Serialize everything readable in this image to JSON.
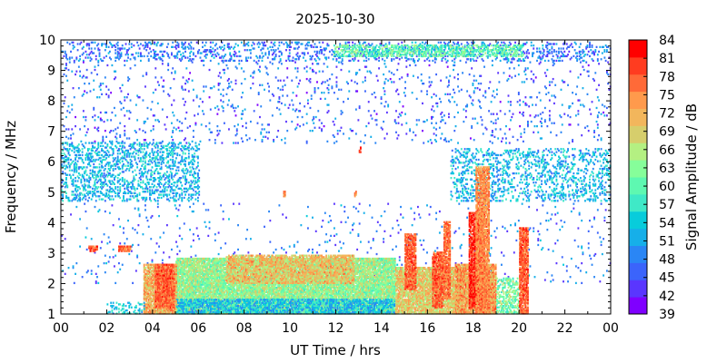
{
  "chart_data": {
    "type": "heatmap",
    "title": "2025-10-30",
    "xlabel": "UT Time / hrs",
    "ylabel": "Frequency / MHz",
    "colorbar_label": "Signal Amplitude / dB",
    "xlim": [
      0,
      24
    ],
    "ylim": [
      1,
      10
    ],
    "x_ticks": [
      "00",
      "02",
      "04",
      "06",
      "08",
      "10",
      "12",
      "14",
      "16",
      "18",
      "20",
      "22",
      "00"
    ],
    "y_ticks": [
      "1",
      "2",
      "3",
      "4",
      "5",
      "6",
      "7",
      "8",
      "9",
      "10"
    ],
    "colorbar_range": [
      39,
      84
    ],
    "colorbar_ticks": [
      "39",
      "42",
      "45",
      "48",
      "51",
      "54",
      "57",
      "60",
      "63",
      "66",
      "69",
      "72",
      "75",
      "78",
      "81",
      "84"
    ],
    "colorbar_colors": [
      "#7f00ff",
      "#5a36fe",
      "#3b64fb",
      "#2a86f5",
      "#16afe9",
      "#08ccdb",
      "#3fe9c7",
      "#5ef8b1",
      "#86fe9a",
      "#b4f082",
      "#d6ce6c",
      "#f2b65c",
      "#ff9a4c",
      "#ff6a38",
      "#ff3c20",
      "#ff0000"
    ],
    "grid": false,
    "regions": [
      {
        "t0": 0.0,
        "t1": 24.0,
        "f0": 9.3,
        "f1": 9.95,
        "level": 47,
        "density": 0.18
      },
      {
        "t0": 11.9,
        "t1": 20.2,
        "f0": 9.45,
        "f1": 9.85,
        "level": 60,
        "density": 0.5
      },
      {
        "t0": 0.0,
        "t1": 6.0,
        "f0": 4.7,
        "f1": 6.6,
        "level": 52,
        "density": 0.28
      },
      {
        "t0": 17.0,
        "t1": 24.0,
        "f0": 4.7,
        "f1": 6.4,
        "level": 52,
        "density": 0.22
      },
      {
        "t0": 0.0,
        "t1": 24.0,
        "f0": 6.6,
        "f1": 9.3,
        "level": 46,
        "density": 0.04
      },
      {
        "t0": 0.0,
        "t1": 24.0,
        "f0": 2.0,
        "f1": 4.6,
        "level": 47,
        "density": 0.02
      },
      {
        "t0": 5.0,
        "t1": 14.6,
        "f0": 1.0,
        "f1": 2.8,
        "level": 64,
        "density": 0.9
      },
      {
        "t0": 5.0,
        "t1": 14.6,
        "f0": 1.0,
        "f1": 1.5,
        "level": 53,
        "density": 0.65
      },
      {
        "t0": 7.2,
        "t1": 12.8,
        "f0": 2.0,
        "f1": 2.9,
        "level": 71,
        "density": 0.7
      },
      {
        "t0": 3.6,
        "t1": 5.0,
        "f0": 1.0,
        "f1": 2.6,
        "level": 73,
        "density": 0.8
      },
      {
        "t0": 14.6,
        "t1": 17.6,
        "f0": 1.0,
        "f1": 2.5,
        "level": 70,
        "density": 0.85
      },
      {
        "t0": 17.2,
        "t1": 19.0,
        "f0": 1.0,
        "f1": 2.6,
        "level": 74,
        "density": 0.9
      },
      {
        "t0": 19.0,
        "t1": 20.0,
        "f0": 1.0,
        "f1": 2.2,
        "level": 62,
        "density": 0.45
      },
      {
        "t0": 2.0,
        "t1": 3.6,
        "f0": 1.0,
        "f1": 1.4,
        "level": 54,
        "density": 0.25
      }
    ],
    "bursts": [
      {
        "t0": 4.1,
        "t1": 4.9,
        "f0": 1.2,
        "f1": 2.6,
        "level": 79
      },
      {
        "t0": 15.0,
        "t1": 15.5,
        "f0": 1.8,
        "f1": 3.6,
        "level": 79
      },
      {
        "t0": 16.2,
        "t1": 16.7,
        "f0": 1.2,
        "f1": 3.0,
        "level": 79
      },
      {
        "t0": 16.7,
        "t1": 17.0,
        "f0": 1.5,
        "f1": 4.0,
        "level": 78
      },
      {
        "t0": 17.8,
        "t1": 18.5,
        "f0": 1.2,
        "f1": 4.3,
        "level": 82
      },
      {
        "t0": 18.1,
        "t1": 18.7,
        "f0": 1.0,
        "f1": 5.8,
        "level": 76
      },
      {
        "t0": 20.0,
        "t1": 20.4,
        "f0": 1.0,
        "f1": 3.8,
        "level": 79
      },
      {
        "t0": 1.2,
        "t1": 1.6,
        "f0": 3.05,
        "f1": 3.2,
        "level": 80
      },
      {
        "t0": 2.5,
        "t1": 3.0,
        "f0": 3.05,
        "f1": 3.2,
        "level": 78
      },
      {
        "t0": 13.0,
        "t1": 13.1,
        "f0": 6.3,
        "f1": 6.45,
        "level": 84
      },
      {
        "t0": 9.7,
        "t1": 9.8,
        "f0": 4.85,
        "f1": 5.0,
        "level": 75
      },
      {
        "t0": 12.8,
        "t1": 12.9,
        "f0": 4.85,
        "f1": 5.0,
        "level": 75
      }
    ]
  }
}
